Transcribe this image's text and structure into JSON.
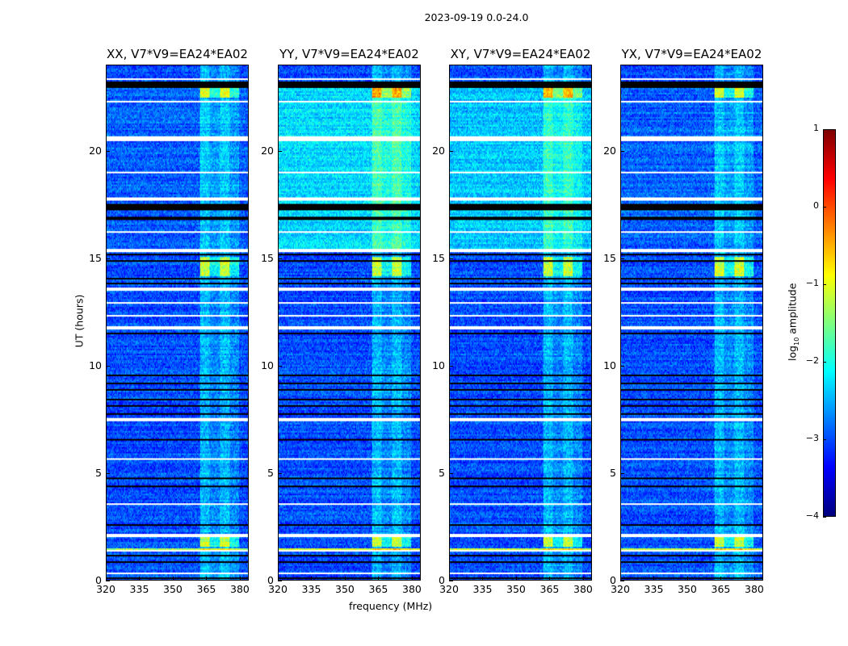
{
  "chart_data": {
    "type": "heatmap",
    "title": "2023-09-19 0.0-24.0",
    "xlabel": "frequency (MHz)",
    "ylabel": "UT (hours)",
    "xlim": [
      320,
      384
    ],
    "ylim": [
      0,
      24
    ],
    "xticks": [
      "320",
      "335",
      "350",
      "365",
      "380"
    ],
    "yticks": [
      "0",
      "5",
      "10",
      "15",
      "20"
    ],
    "panels": [
      {
        "title": "XX, V7*V9=EA24*EA02",
        "base_level": -3.0,
        "late_level": -2.9
      },
      {
        "title": "YY, V7*V9=EA24*EA02",
        "base_level": -3.0,
        "late_level": -2.3
      },
      {
        "title": "XY, V7*V9=EA24*EA02",
        "base_level": -3.0,
        "late_level": -2.4
      },
      {
        "title": "YX, V7*V9=EA24*EA02",
        "base_level": -3.0,
        "late_level": -2.9
      }
    ],
    "rfi_band_mhz": [
      362,
      380
    ],
    "flagged_white_hours": [
      [
        23.35,
        23.45
      ],
      [
        22.3,
        22.38
      ],
      [
        21.9,
        21.97
      ],
      [
        20.5,
        20.7
      ],
      [
        19.0,
        19.05
      ],
      [
        17.7,
        17.9
      ],
      [
        16.2,
        16.28
      ],
      [
        15.35,
        15.45
      ],
      [
        13.55,
        13.65
      ],
      [
        12.9,
        12.97
      ],
      [
        12.35,
        12.42
      ],
      [
        11.75,
        11.9
      ],
      [
        7.45,
        7.55
      ],
      [
        6.05,
        6.1
      ],
      [
        5.65,
        5.72
      ],
      [
        3.55,
        3.62
      ],
      [
        2.05,
        2.15
      ],
      [
        1.35,
        1.4
      ],
      [
        0.3,
        0.35
      ]
    ],
    "flagged_black_hours": [
      [
        23.0,
        23.3
      ],
      [
        17.3,
        17.6
      ],
      [
        16.85,
        16.95
      ],
      [
        15.15,
        15.25
      ],
      [
        14.85,
        14.92
      ],
      [
        14.05,
        14.12
      ],
      [
        13.85,
        13.92
      ],
      [
        11.5,
        11.6
      ],
      [
        9.55,
        9.62
      ],
      [
        9.15,
        9.22
      ],
      [
        8.85,
        8.92
      ],
      [
        8.45,
        8.52
      ],
      [
        8.15,
        8.22
      ],
      [
        7.75,
        7.82
      ],
      [
        6.95,
        7.02
      ],
      [
        6.55,
        6.62
      ],
      [
        5.15,
        5.22
      ],
      [
        4.75,
        4.82
      ],
      [
        4.35,
        4.42
      ],
      [
        2.55,
        2.65
      ],
      [
        1.15,
        1.22
      ],
      [
        0.85,
        0.92
      ],
      [
        0.05,
        0.15
      ]
    ],
    "colorbar": {
      "label_main": "log",
      "label_sub": "10",
      "label_rest": " amplitude",
      "range": [
        -4,
        1
      ],
      "ticks": [
        "1",
        "0",
        "−1",
        "−2",
        "−3",
        "−4"
      ],
      "colormap": "jet"
    }
  }
}
